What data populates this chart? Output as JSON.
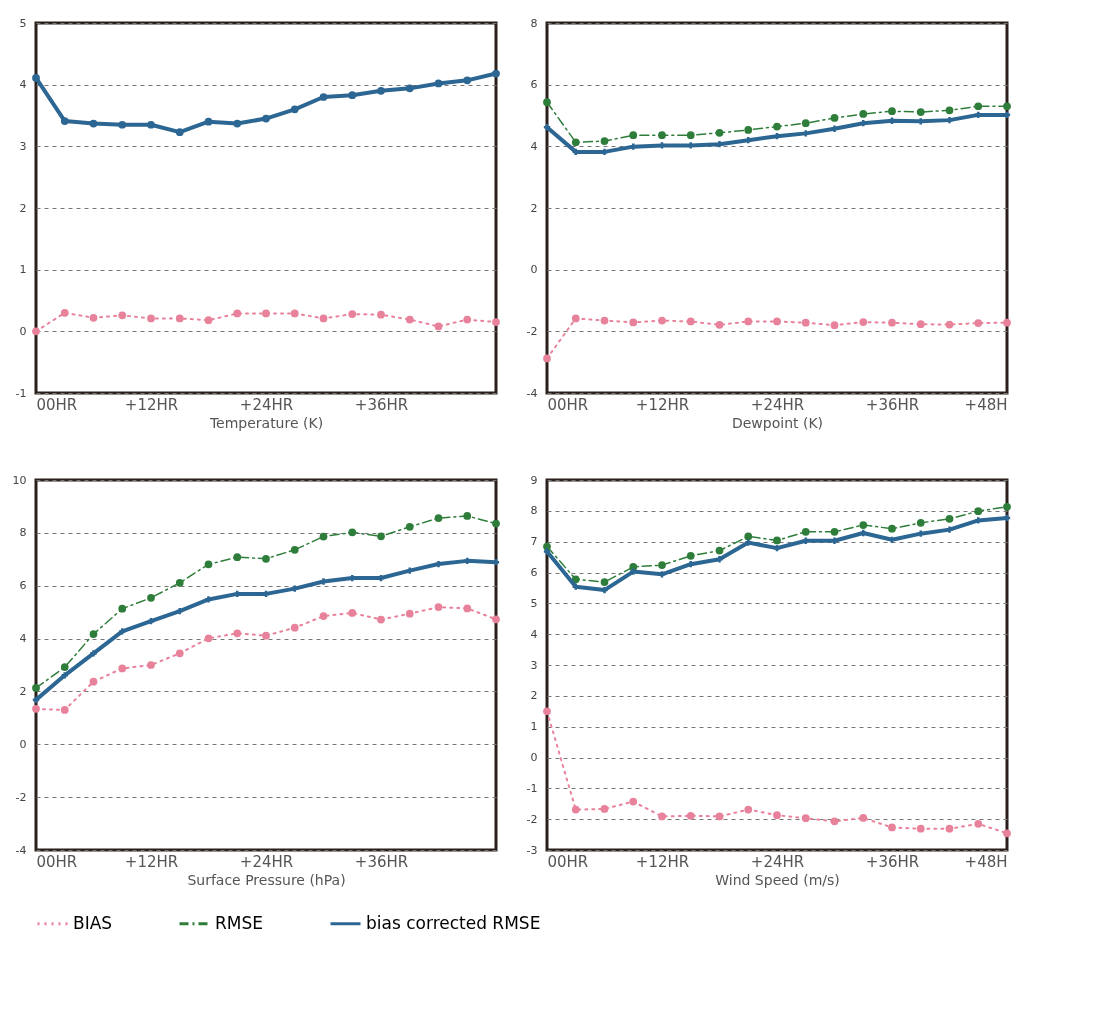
{
  "chart_data": [
    {
      "type": "line",
      "xlabel": "Temperature (K)",
      "x": [
        0,
        3,
        6,
        9,
        12,
        15,
        18,
        21,
        24,
        27,
        30,
        33,
        36,
        39,
        42,
        45,
        48
      ],
      "xlim": [
        0,
        48
      ],
      "xticks": [
        {
          "value": 0,
          "label": "00HR"
        },
        {
          "value": 12,
          "label": "+12HR"
        },
        {
          "value": 24,
          "label": "+24HR"
        },
        {
          "value": 36,
          "label": "+36HR"
        },
        {
          "value": 48,
          "label": null
        }
      ],
      "ylim": [
        -1,
        5
      ],
      "yticks": [
        -1,
        0,
        1,
        2,
        3,
        4,
        5
      ],
      "grid": "y",
      "legend": "bottom",
      "series": [
        {
          "name": "BIAS",
          "color": "#e8829b",
          "marker": "circle",
          "line_style": "dotted",
          "values": [
            0.0,
            0.3,
            0.22,
            0.26,
            0.21,
            0.21,
            0.18,
            0.29,
            0.29,
            0.29,
            0.21,
            0.28,
            0.27,
            0.19,
            0.08,
            0.19,
            0.15
          ]
        },
        {
          "name": "bias corrected RMSE",
          "color": "#2c6693",
          "marker": "circle",
          "line_style": "solid",
          "values": [
            4.11,
            3.41,
            3.37,
            3.35,
            3.35,
            3.23,
            3.4,
            3.37,
            3.45,
            3.6,
            3.8,
            3.83,
            3.9,
            3.94,
            4.02,
            4.07,
            4.18
          ]
        }
      ]
    },
    {
      "type": "line",
      "xlabel": "Dewpoint (K)",
      "x": [
        0,
        3,
        6,
        9,
        12,
        15,
        18,
        21,
        24,
        27,
        30,
        33,
        36,
        39,
        42,
        45,
        48
      ],
      "xlim": [
        0,
        48
      ],
      "xticks": [
        {
          "value": 0,
          "label": "00HR"
        },
        {
          "value": 12,
          "label": "+12HR"
        },
        {
          "value": 24,
          "label": "+24HR"
        },
        {
          "value": 36,
          "label": "+36HR"
        },
        {
          "value": 48,
          "label": "+48H"
        }
      ],
      "ylim": [
        -4,
        8
      ],
      "yticks": [
        -4,
        -2,
        0,
        2,
        4,
        6,
        8
      ],
      "grid": "y",
      "legend": "bottom",
      "series": [
        {
          "name": "BIAS",
          "color": "#e8829b",
          "marker": "circle",
          "line_style": "dotted",
          "values": [
            -2.88,
            -1.58,
            -1.65,
            -1.71,
            -1.65,
            -1.68,
            -1.79,
            -1.68,
            -1.68,
            -1.72,
            -1.8,
            -1.7,
            -1.72,
            -1.77,
            -1.78,
            -1.73,
            -1.72
          ]
        },
        {
          "name": "RMSE",
          "color": "#2e7d3a",
          "marker": "circle",
          "line_style": "dashdot",
          "values": [
            5.43,
            4.13,
            4.17,
            4.36,
            4.36,
            4.36,
            4.44,
            4.53,
            4.64,
            4.75,
            4.92,
            5.05,
            5.14,
            5.11,
            5.17,
            5.3,
            5.3
          ]
        },
        {
          "name": "bias corrected RMSE",
          "color": "#2c6693",
          "marker": "cross",
          "line_style": "solid",
          "values": [
            4.62,
            3.82,
            3.82,
            3.99,
            4.03,
            4.03,
            4.07,
            4.2,
            4.33,
            4.42,
            4.57,
            4.75,
            4.83,
            4.81,
            4.85,
            5.02,
            5.02
          ]
        }
      ]
    },
    {
      "type": "line",
      "xlabel": "Surface Pressure (hPa)",
      "x": [
        0,
        3,
        6,
        9,
        12,
        15,
        18,
        21,
        24,
        27,
        30,
        33,
        36,
        39,
        42,
        45,
        48
      ],
      "xlim": [
        0,
        48
      ],
      "xticks": [
        {
          "value": 0,
          "label": "00HR"
        },
        {
          "value": 12,
          "label": "+12HR"
        },
        {
          "value": 24,
          "label": "+24HR"
        },
        {
          "value": 36,
          "label": "+36HR"
        },
        {
          "value": 48,
          "label": null
        }
      ],
      "ylim": [
        -4,
        10
      ],
      "yticks": [
        -4,
        -2,
        0,
        2,
        4,
        6,
        8,
        10
      ],
      "grid": "y",
      "legend": "bottom",
      "series": [
        {
          "name": "BIAS",
          "color": "#e8829b",
          "marker": "circle",
          "line_style": "dotted",
          "values": [
            1.34,
            1.3,
            2.37,
            2.87,
            3.0,
            3.44,
            4.01,
            4.2,
            4.11,
            4.41,
            4.85,
            4.97,
            4.72,
            4.94,
            5.19,
            5.14,
            4.73
          ]
        },
        {
          "name": "RMSE",
          "color": "#2e7d3a",
          "marker": "circle",
          "line_style": "dashdot",
          "values": [
            2.13,
            2.92,
            4.17,
            5.13,
            5.54,
            6.11,
            6.81,
            7.08,
            7.02,
            7.36,
            7.86,
            8.02,
            7.87,
            8.23,
            8.56,
            8.64,
            8.35
          ]
        },
        {
          "name": "bias corrected RMSE",
          "color": "#2c6693",
          "marker": "cross",
          "line_style": "solid",
          "values": [
            1.68,
            2.61,
            3.44,
            4.27,
            4.66,
            5.04,
            5.48,
            5.69,
            5.69,
            5.89,
            6.16,
            6.29,
            6.29,
            6.57,
            6.82,
            6.94,
            6.89
          ]
        }
      ]
    },
    {
      "type": "line",
      "xlabel": "Wind Speed (m/s)",
      "x": [
        0,
        3,
        6,
        9,
        12,
        15,
        18,
        21,
        24,
        27,
        30,
        33,
        36,
        39,
        42,
        45,
        48
      ],
      "xlim": [
        0,
        48
      ],
      "xticks": [
        {
          "value": 0,
          "label": "00HR"
        },
        {
          "value": 12,
          "label": "+12HR"
        },
        {
          "value": 24,
          "label": "+24HR"
        },
        {
          "value": 36,
          "label": "+36HR"
        },
        {
          "value": 48,
          "label": "+48H"
        }
      ],
      "ylim": [
        -3,
        9
      ],
      "yticks": [
        -3,
        -2,
        -1,
        0,
        1,
        2,
        3,
        4,
        5,
        6,
        7,
        8,
        9
      ],
      "grid": "y",
      "legend": "bottom",
      "series": [
        {
          "name": "BIAS",
          "color": "#e8829b",
          "marker": "circle",
          "line_style": "dotted",
          "values": [
            1.5,
            -1.69,
            -1.67,
            -1.43,
            -1.91,
            -1.89,
            -1.91,
            -1.69,
            -1.87,
            -1.97,
            -2.07,
            -1.96,
            -2.27,
            -2.31,
            -2.31,
            -2.15,
            -2.46
          ]
        },
        {
          "name": "RMSE",
          "color": "#2e7d3a",
          "marker": "circle",
          "line_style": "dashdot",
          "values": [
            6.84,
            5.78,
            5.69,
            6.18,
            6.24,
            6.54,
            6.71,
            7.17,
            7.04,
            7.32,
            7.32,
            7.54,
            7.42,
            7.61,
            7.74,
            7.99,
            8.13
          ]
        },
        {
          "name": "bias corrected RMSE",
          "color": "#2c6693",
          "marker": "cross",
          "line_style": "solid",
          "values": [
            6.68,
            5.54,
            5.43,
            6.03,
            5.94,
            6.27,
            6.43,
            6.97,
            6.79,
            7.03,
            7.03,
            7.28,
            7.06,
            7.26,
            7.39,
            7.69,
            7.77
          ]
        }
      ]
    }
  ]
}
